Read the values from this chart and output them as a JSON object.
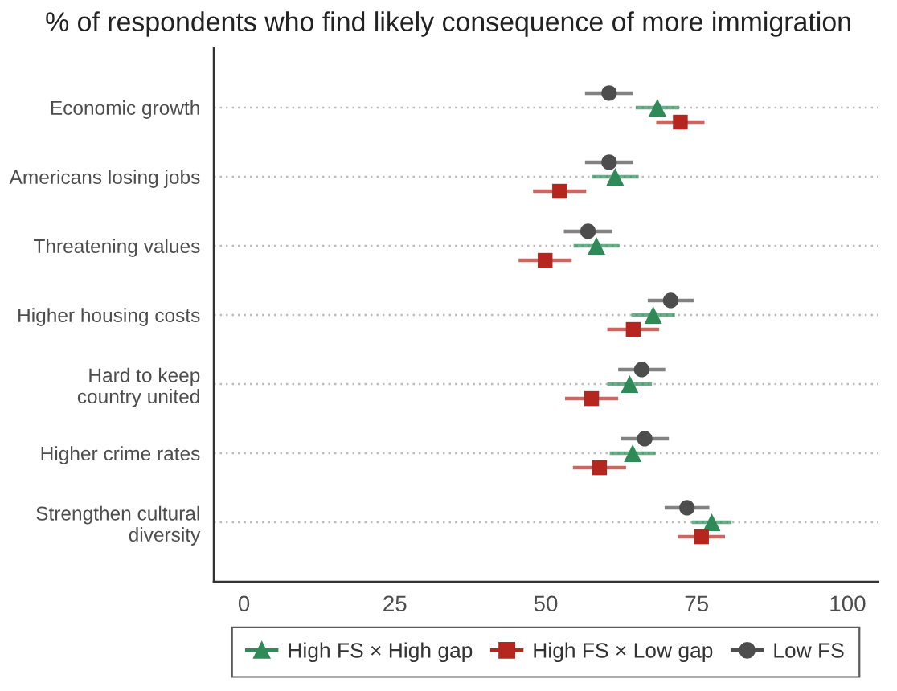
{
  "chart_data": {
    "type": "scatter",
    "orientation": "horizontal",
    "title": "% of respondents who find likely consequence of more immigration",
    "categories": [
      "Economic growth",
      "Americans losing jobs",
      "Threatening values",
      "Higher housing costs",
      "Hard to keep\ncountry united",
      "Higher crime rates",
      "Strengthen cultural\ndiversity"
    ],
    "series": [
      {
        "name": "High FS × High gap",
        "color": "#2e8b57",
        "marker": "triangle",
        "values": [
          68.5,
          61.5,
          58.4,
          67.8,
          63.9,
          64.4,
          77.5
        ],
        "errors": [
          3.6,
          3.9,
          3.8,
          3.6,
          3.7,
          3.8,
          3.3
        ]
      },
      {
        "name": "High FS × Low gap",
        "color": "#b5261e",
        "marker": "square",
        "values": [
          72.3,
          52.3,
          49.9,
          64.5,
          57.6,
          58.9,
          75.8
        ],
        "errors": [
          4.0,
          4.4,
          4.4,
          4.3,
          4.4,
          4.4,
          3.9
        ]
      },
      {
        "name": "Low FS",
        "color": "#4d4d4d",
        "marker": "circle",
        "values": [
          60.5,
          60.5,
          57.0,
          70.7,
          65.9,
          66.4,
          73.4
        ],
        "errors": [
          4.0,
          4.0,
          4.0,
          3.8,
          3.9,
          4.0,
          3.7
        ]
      }
    ],
    "xlim": [
      -5,
      105
    ],
    "xticks": [
      0,
      25,
      50,
      75,
      100
    ],
    "grid": "y",
    "legend": "bottom"
  }
}
